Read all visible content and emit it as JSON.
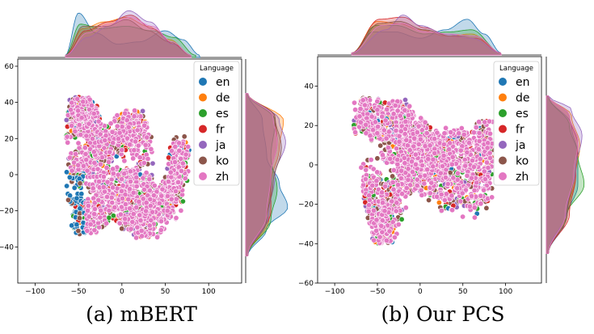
{
  "colors": {
    "en": "#1f77b4",
    "de": "#ff7f0e",
    "es": "#2ca02c",
    "fr": "#d62728",
    "ja": "#9467bd",
    "ko": "#8c564b",
    "zh": "#e377c2"
  },
  "chart_data": [
    {
      "type": "scatter",
      "caption": "(a) mBERT",
      "legend_title": "Language",
      "legend_position": "top-right",
      "series": [
        {
          "name": "en"
        },
        {
          "name": "de"
        },
        {
          "name": "es"
        },
        {
          "name": "fr"
        },
        {
          "name": "ja"
        },
        {
          "name": "ko"
        },
        {
          "name": "zh"
        }
      ],
      "xlim": [
        -120,
        138
      ],
      "ylim": [
        -60,
        64
      ],
      "xticks": [
        -100,
        -50,
        0,
        50,
        100
      ],
      "yticks": [
        -40,
        -20,
        0,
        20,
        40,
        60
      ],
      "x_range": [
        -65,
        78
      ],
      "y_range": [
        -35,
        43
      ],
      "marginal_x": {
        "en": [
          [
            -65,
            0.05
          ],
          [
            -50,
            1.0
          ],
          [
            -30,
            0.55
          ],
          [
            -5,
            0.3
          ],
          [
            20,
            0.35
          ],
          [
            50,
            0.6
          ],
          [
            70,
            0.4
          ],
          [
            90,
            0.05
          ]
        ],
        "de": [
          [
            -65,
            0.05
          ],
          [
            -45,
            0.65
          ],
          [
            -20,
            0.8
          ],
          [
            5,
            0.9
          ],
          [
            30,
            0.7
          ],
          [
            55,
            0.4
          ],
          [
            80,
            0.05
          ]
        ],
        "es": [
          [
            -65,
            0.05
          ],
          [
            -48,
            0.75
          ],
          [
            -25,
            0.65
          ],
          [
            5,
            0.7
          ],
          [
            35,
            0.6
          ],
          [
            60,
            0.45
          ],
          [
            85,
            0.05
          ]
        ],
        "fr": [
          [
            -65,
            0.05
          ],
          [
            -42,
            0.6
          ],
          [
            -15,
            0.8
          ],
          [
            10,
            0.95
          ],
          [
            35,
            0.65
          ],
          [
            60,
            0.3
          ],
          [
            80,
            0.05
          ]
        ],
        "ja": [
          [
            -65,
            0.05
          ],
          [
            -40,
            0.45
          ],
          [
            -15,
            0.7
          ],
          [
            8,
            1.05
          ],
          [
            32,
            0.8
          ],
          [
            58,
            0.3
          ],
          [
            80,
            0.05
          ]
        ],
        "ko": [
          [
            -65,
            0.05
          ],
          [
            -45,
            0.7
          ],
          [
            -18,
            0.7
          ],
          [
            5,
            0.85
          ],
          [
            30,
            0.6
          ],
          [
            55,
            0.35
          ],
          [
            80,
            0.05
          ]
        ],
        "zh": [
          [
            -65,
            0.05
          ],
          [
            -40,
            0.55
          ],
          [
            -15,
            0.75
          ],
          [
            10,
            0.9
          ],
          [
            35,
            0.7
          ],
          [
            58,
            0.35
          ],
          [
            80,
            0.05
          ]
        ]
      },
      "marginal_y": {
        "en": [
          [
            -45,
            0.05
          ],
          [
            -30,
            0.5
          ],
          [
            -18,
            1.0
          ],
          [
            -5,
            0.8
          ],
          [
            10,
            0.5
          ],
          [
            30,
            0.4
          ],
          [
            45,
            0.05
          ]
        ],
        "de": [
          [
            -45,
            0.05
          ],
          [
            -25,
            0.55
          ],
          [
            -5,
            0.6
          ],
          [
            15,
            0.8
          ],
          [
            30,
            0.9
          ],
          [
            45,
            0.05
          ]
        ],
        "es": [
          [
            -45,
            0.05
          ],
          [
            -25,
            0.6
          ],
          [
            -8,
            0.75
          ],
          [
            10,
            0.6
          ],
          [
            30,
            0.7
          ],
          [
            45,
            0.05
          ]
        ],
        "fr": [
          [
            -45,
            0.05
          ],
          [
            -20,
            0.6
          ],
          [
            0,
            0.6
          ],
          [
            18,
            0.75
          ],
          [
            32,
            0.7
          ],
          [
            45,
            0.05
          ]
        ],
        "ja": [
          [
            -45,
            0.05
          ],
          [
            -22,
            0.55
          ],
          [
            0,
            0.7
          ],
          [
            18,
            0.95
          ],
          [
            30,
            0.8
          ],
          [
            45,
            0.05
          ]
        ],
        "ko": [
          [
            -45,
            0.05
          ],
          [
            -25,
            0.5
          ],
          [
            -5,
            0.65
          ],
          [
            15,
            0.85
          ],
          [
            32,
            0.7
          ],
          [
            45,
            0.05
          ]
        ],
        "zh": [
          [
            -45,
            0.05
          ],
          [
            -22,
            0.5
          ],
          [
            0,
            0.6
          ],
          [
            18,
            0.75
          ],
          [
            32,
            0.65
          ],
          [
            45,
            0.05
          ]
        ]
      },
      "blob": [
        [
          [
            -60,
            -10
          ],
          [
            -48,
            10
          ],
          [
            -20,
            -5
          ],
          [
            10,
            -5
          ],
          [
            28,
            -10
          ],
          [
            45,
            -20
          ],
          [
            60,
            0
          ],
          [
            72,
            15
          ]
        ],
        [
          [
            -55,
            25
          ],
          [
            -50,
            38
          ],
          [
            -40,
            35
          ],
          [
            -30,
            20
          ],
          [
            -10,
            15
          ],
          [
            5,
            25
          ],
          [
            15,
            28
          ],
          [
            25,
            10
          ]
        ],
        [
          [
            -50,
            -20
          ],
          [
            -40,
            -25
          ],
          [
            -20,
            -15
          ],
          [
            0,
            -18
          ],
          [
            20,
            -25
          ],
          [
            30,
            -32
          ],
          [
            55,
            -15
          ],
          [
            70,
            5
          ]
        ]
      ]
    },
    {
      "type": "scatter",
      "caption": "(b) Our PCS",
      "legend_title": "Language",
      "legend_position": "top-right",
      "series": [
        {
          "name": "en"
        },
        {
          "name": "de"
        },
        {
          "name": "es"
        },
        {
          "name": "fr"
        },
        {
          "name": "ja"
        },
        {
          "name": "ko"
        },
        {
          "name": "zh"
        }
      ],
      "xlim": [
        -120,
        142
      ],
      "ylim": [
        -60,
        55
      ],
      "xticks": [
        -100,
        -50,
        0,
        50,
        100
      ],
      "yticks": [
        -60,
        -40,
        -20,
        0,
        20,
        40
      ],
      "x_range": [
        -78,
        85
      ],
      "y_range": [
        -40,
        37
      ],
      "marginal_x": {
        "en": [
          [
            -80,
            0.05
          ],
          [
            -55,
            0.55
          ],
          [
            -30,
            0.55
          ],
          [
            0,
            0.4
          ],
          [
            30,
            0.6
          ],
          [
            55,
            0.85
          ],
          [
            75,
            0.5
          ],
          [
            95,
            0.05
          ]
        ],
        "de": [
          [
            -80,
            0.05
          ],
          [
            -50,
            0.8
          ],
          [
            -25,
            0.75
          ],
          [
            0,
            0.6
          ],
          [
            30,
            0.45
          ],
          [
            60,
            0.5
          ],
          [
            95,
            0.05
          ]
        ],
        "es": [
          [
            -80,
            0.05
          ],
          [
            -52,
            0.7
          ],
          [
            -28,
            0.7
          ],
          [
            5,
            0.5
          ],
          [
            35,
            0.55
          ],
          [
            60,
            0.6
          ],
          [
            95,
            0.05
          ]
        ],
        "fr": [
          [
            -80,
            0.05
          ],
          [
            -48,
            0.85
          ],
          [
            -20,
            0.9
          ],
          [
            5,
            0.65
          ],
          [
            35,
            0.45
          ],
          [
            65,
            0.4
          ],
          [
            95,
            0.05
          ]
        ],
        "ja": [
          [
            -80,
            0.05
          ],
          [
            -40,
            0.6
          ],
          [
            -20,
            0.95
          ],
          [
            0,
            0.7
          ],
          [
            30,
            0.5
          ],
          [
            60,
            0.4
          ],
          [
            95,
            0.05
          ]
        ],
        "ko": [
          [
            -80,
            0.05
          ],
          [
            -48,
            0.75
          ],
          [
            -25,
            0.8
          ],
          [
            5,
            0.6
          ],
          [
            35,
            0.45
          ],
          [
            65,
            0.45
          ],
          [
            95,
            0.05
          ]
        ],
        "zh": [
          [
            -80,
            0.05
          ],
          [
            -45,
            0.7
          ],
          [
            -20,
            0.75
          ],
          [
            5,
            0.55
          ],
          [
            35,
            0.5
          ],
          [
            65,
            0.45
          ],
          [
            95,
            0.05
          ]
        ]
      },
      "marginal_y": {
        "en": [
          [
            -45,
            0.05
          ],
          [
            -28,
            0.45
          ],
          [
            -10,
            0.75
          ],
          [
            5,
            0.75
          ],
          [
            20,
            0.6
          ],
          [
            35,
            0.05
          ]
        ],
        "de": [
          [
            -45,
            0.05
          ],
          [
            -25,
            0.5
          ],
          [
            -5,
            0.7
          ],
          [
            10,
            0.8
          ],
          [
            25,
            0.6
          ],
          [
            35,
            0.05
          ]
        ],
        "es": [
          [
            -45,
            0.05
          ],
          [
            -25,
            0.5
          ],
          [
            -10,
            0.9
          ],
          [
            5,
            0.75
          ],
          [
            20,
            0.55
          ],
          [
            35,
            0.05
          ]
        ],
        "fr": [
          [
            -45,
            0.05
          ],
          [
            -25,
            0.55
          ],
          [
            -5,
            0.7
          ],
          [
            10,
            0.75
          ],
          [
            25,
            0.55
          ],
          [
            35,
            0.05
          ]
        ],
        "ja": [
          [
            -45,
            0.05
          ],
          [
            -22,
            0.5
          ],
          [
            -2,
            0.7
          ],
          [
            15,
            0.85
          ],
          [
            28,
            0.6
          ],
          [
            35,
            0.05
          ]
        ],
        "ko": [
          [
            -45,
            0.05
          ],
          [
            -25,
            0.5
          ],
          [
            -5,
            0.65
          ],
          [
            12,
            0.75
          ],
          [
            25,
            0.55
          ],
          [
            35,
            0.05
          ]
        ],
        "zh": [
          [
            -45,
            0.05
          ],
          [
            -25,
            0.45
          ],
          [
            -5,
            0.65
          ],
          [
            12,
            0.75
          ],
          [
            25,
            0.55
          ],
          [
            35,
            0.05
          ]
        ]
      },
      "blob": [
        [
          [
            -75,
            25
          ],
          [
            -60,
            25
          ],
          [
            -45,
            20
          ],
          [
            -25,
            25
          ],
          [
            -15,
            18
          ],
          [
            0,
            12
          ],
          [
            20,
            5
          ],
          [
            40,
            -5
          ]
        ],
        [
          [
            -60,
            -5
          ],
          [
            -50,
            -20
          ],
          [
            -45,
            -35
          ],
          [
            -35,
            -25
          ],
          [
            -20,
            -5
          ],
          [
            0,
            -2
          ],
          [
            30,
            -15
          ],
          [
            70,
            -10
          ]
        ],
        [
          [
            -40,
            10
          ],
          [
            -20,
            10
          ],
          [
            10,
            5
          ],
          [
            40,
            10
          ],
          [
            60,
            5
          ],
          [
            80,
            15
          ],
          [
            82,
            0
          ],
          [
            60,
            -20
          ]
        ]
      ]
    }
  ]
}
